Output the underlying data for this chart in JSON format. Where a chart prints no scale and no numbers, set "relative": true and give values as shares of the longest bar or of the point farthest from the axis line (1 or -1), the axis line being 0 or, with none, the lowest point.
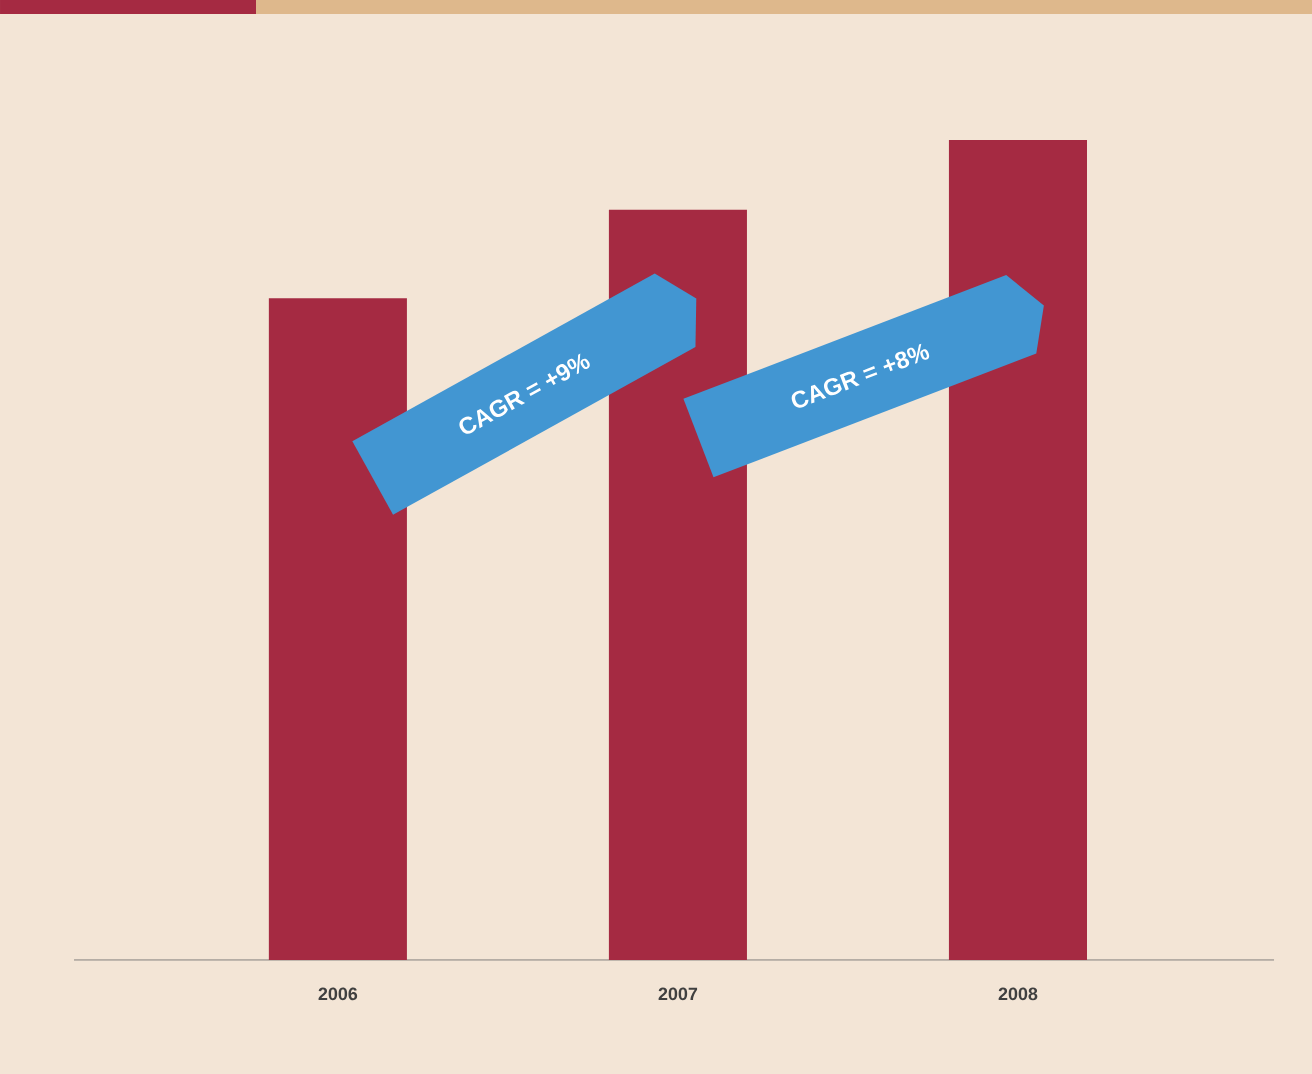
{
  "chart_data": {
    "type": "bar",
    "relative": true,
    "categories": [
      "2006",
      "2007",
      "2008"
    ],
    "values": [
      0.807,
      0.915,
      1
    ],
    "color": "#a52a42",
    "annotations": [
      "CAGR = +9%",
      "CAGR = +8%"
    ]
  }
}
